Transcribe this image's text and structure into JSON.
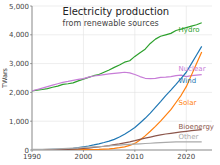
{
  "chart_data": {
    "type": "line",
    "title": "Electricity production",
    "subtitle": "from renewable sources",
    "y_label": "TWars",
    "x": [
      1990,
      1991,
      1992,
      1993,
      1994,
      1995,
      1996,
      1997,
      1998,
      1999,
      2000,
      2001,
      2002,
      2003,
      2004,
      2005,
      2006,
      2007,
      2008,
      2009,
      2010,
      2011,
      2012,
      2013,
      2014,
      2015,
      2016,
      2017,
      2018,
      2019,
      2020,
      2021,
      2022,
      2023
    ],
    "series": [
      {
        "name": "Hydro",
        "color": "#2ca02c",
        "values": [
          2050,
          2080,
          2100,
          2130,
          2180,
          2220,
          2280,
          2300,
          2330,
          2400,
          2460,
          2520,
          2580,
          2620,
          2700,
          2780,
          2870,
          2950,
          3050,
          3100,
          3250,
          3380,
          3500,
          3700,
          3850,
          3950,
          4000,
          4050,
          4150,
          4200,
          4250,
          4300,
          4350,
          4420
        ]
      },
      {
        "name": "Nuclear",
        "color": "#c77dd7",
        "values": [
          2050,
          2100,
          2150,
          2200,
          2250,
          2300,
          2350,
          2380,
          2420,
          2450,
          2480,
          2530,
          2570,
          2590,
          2620,
          2640,
          2660,
          2680,
          2700,
          2680,
          2620,
          2550,
          2490,
          2480,
          2490,
          2520,
          2530,
          2550,
          2580,
          2600,
          2550,
          2580,
          2600,
          2620
        ]
      },
      {
        "name": "Wind",
        "color": "#1f77b4",
        "values": [
          5,
          8,
          10,
          15,
          20,
          25,
          35,
          45,
          60,
          80,
          110,
          140,
          175,
          215,
          260,
          310,
          370,
          450,
          550,
          660,
          780,
          940,
          1100,
          1280,
          1480,
          1680,
          1890,
          2080,
          2280,
          2490,
          2700,
          3000,
          3300,
          3600
        ]
      },
      {
        "name": "Solar",
        "color": "#ff7f0e",
        "values": [
          1,
          2,
          2,
          3,
          3,
          4,
          5,
          6,
          7,
          9,
          12,
          15,
          18,
          22,
          30,
          40,
          55,
          80,
          110,
          160,
          230,
          350,
          490,
          650,
          820,
          1000,
          1200,
          1400,
          1650,
          1900,
          2200,
          2600,
          3000,
          3400
        ]
      },
      {
        "name": "Bioenergy",
        "color": "#8c564b",
        "values": [
          5,
          6,
          7,
          8,
          10,
          12,
          15,
          20,
          28,
          38,
          52,
          68,
          88,
          108,
          130,
          155,
          185,
          215,
          250,
          285,
          325,
          370,
          410,
          450,
          490,
          525,
          555,
          580,
          605,
          630,
          650,
          670,
          690,
          710
        ]
      },
      {
        "name": "Other",
        "color": "#aaaaaa",
        "values": [
          20,
          22,
          25,
          28,
          32,
          38,
          45,
          55,
          65,
          78,
          90,
          100,
          110,
          120,
          130,
          145,
          158,
          170,
          185,
          195,
          205,
          215,
          225,
          235,
          245,
          255,
          265,
          275,
          280,
          285,
          285,
          285,
          285,
          285
        ]
      }
    ],
    "annotations": [
      {
        "text": "Hydro",
        "x": 2018.5,
        "y": 4200,
        "color": "#2ca02c"
      },
      {
        "text": "Nuclear",
        "x": 2018.5,
        "y": 2820,
        "color": "#c77dd7"
      },
      {
        "text": "Wind",
        "x": 2018.5,
        "y": 2400,
        "color": "#1f77b4"
      },
      {
        "text": "Solar",
        "x": 2018.5,
        "y": 1650,
        "color": "#ff7f0e"
      },
      {
        "text": "Bioenergy",
        "x": 2018.5,
        "y": 830,
        "color": "#8c564b"
      },
      {
        "text": "Other",
        "x": 2018.5,
        "y": 470,
        "color": "#aaaaaa"
      }
    ],
    "xlim": [
      1990,
      2025
    ],
    "ylim": [
      0,
      5000
    ],
    "xticks": [
      1990,
      2000,
      2010,
      2020
    ],
    "yticks": [
      0,
      {
        "value": 1000,
        "label": "1,000"
      },
      {
        "value": 2000,
        "label": "2,000"
      },
      {
        "value": 3000,
        "label": "3,000"
      },
      {
        "value": 4000,
        "label": "4,000"
      },
      {
        "value": 5000,
        "label": "5,000"
      }
    ],
    "grid": true
  }
}
